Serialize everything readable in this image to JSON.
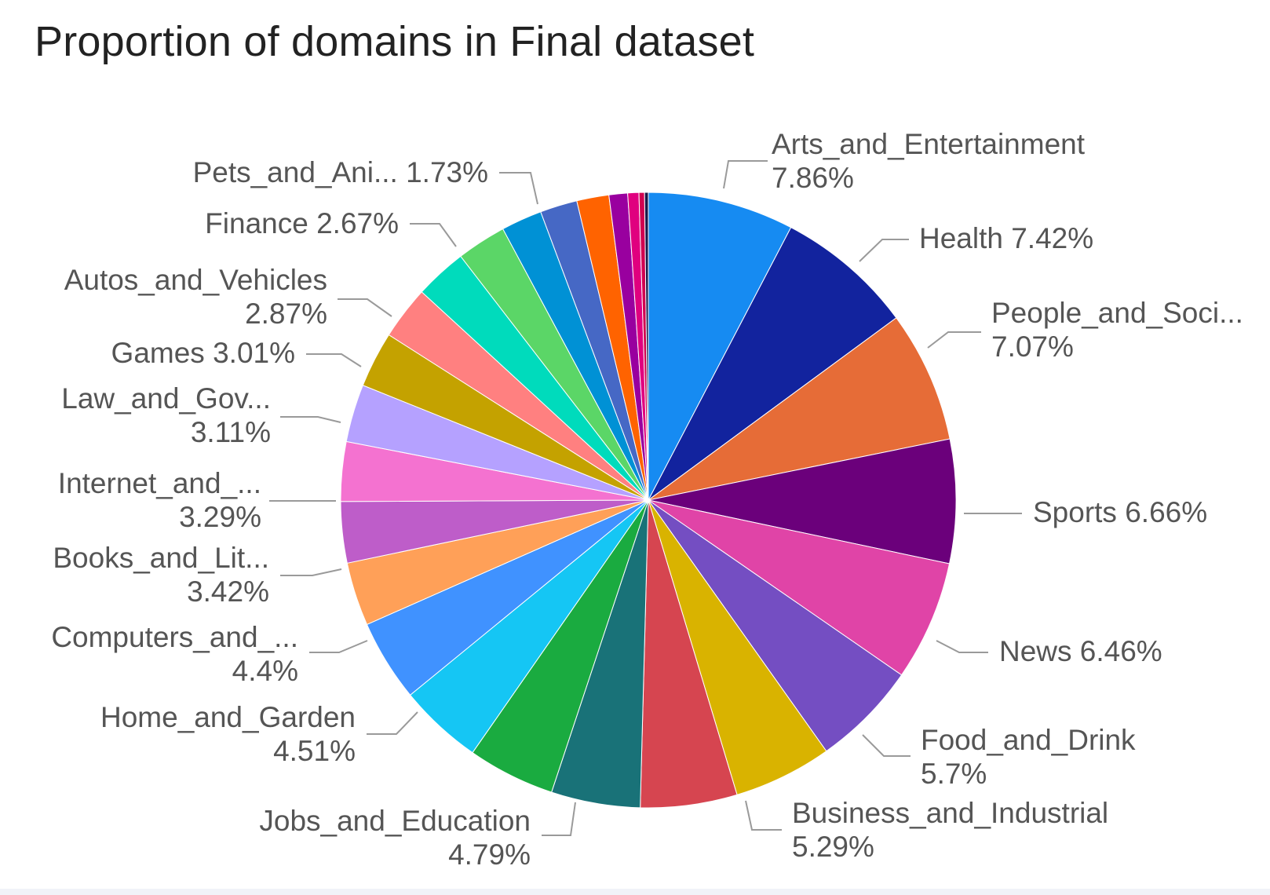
{
  "chart_data": {
    "type": "pie",
    "title": "Proportion of domains in Final dataset",
    "slices": [
      {
        "label": "Arts_and_Entertainment",
        "display": [
          "Arts_and_Entertainment",
          "7.86%"
        ],
        "value": 7.86,
        "color": "#168bf2"
      },
      {
        "label": "Health",
        "display": [
          "Health 7.42%"
        ],
        "value": 7.42,
        "color": "#12239e"
      },
      {
        "label": "People_and_Soci...",
        "display": [
          "People_and_Soci...",
          "7.07%"
        ],
        "value": 7.07,
        "color": "#e66c37"
      },
      {
        "label": "Sports",
        "display": [
          "Sports 6.66%"
        ],
        "value": 6.66,
        "color": "#6b007b"
      },
      {
        "label": "News",
        "display": [
          "News 6.46%"
        ],
        "value": 6.46,
        "color": "#e044a7"
      },
      {
        "label": "Food_and_Drink",
        "display": [
          "Food_and_Drink",
          "5.7%"
        ],
        "value": 5.7,
        "color": "#744ec2"
      },
      {
        "label": "Business_and_Industrial",
        "display": [
          "Business_and_Industrial",
          "5.29%"
        ],
        "value": 5.29,
        "color": "#d9b300"
      },
      {
        "label": "(unlabeled)",
        "display": [],
        "value": 5.2,
        "color": "#d64550"
      },
      {
        "label": "Jobs_and_Education",
        "display": [
          "Jobs_and_Education",
          "4.79%"
        ],
        "value": 4.79,
        "color": "#197278"
      },
      {
        "label": "(unlabeled)",
        "display": [],
        "value": 4.7,
        "color": "#1aab40"
      },
      {
        "label": "Home_and_Garden",
        "display": [
          "Home_and_Garden",
          "4.51%"
        ],
        "value": 4.51,
        "color": "#15c6f4"
      },
      {
        "label": "Computers_and_...",
        "display": [
          "Computers_and_...",
          "4.4%"
        ],
        "value": 4.4,
        "color": "#4092ff"
      },
      {
        "label": "Books_and_Lit...",
        "display": [
          "Books_and_Lit...",
          "3.42%"
        ],
        "value": 3.42,
        "color": "#ffa058"
      },
      {
        "label": "Internet_and_...",
        "display": [
          "Internet_and_...",
          "3.29%"
        ],
        "value": 3.29,
        "color": "#be5dc9"
      },
      {
        "label": "(unlabeled)",
        "display": [],
        "value": 3.2,
        "color": "#f472d0"
      },
      {
        "label": "Law_and_Gov...",
        "display": [
          "Law_and_Gov...",
          "3.11%"
        ],
        "value": 3.11,
        "color": "#b5a1ff"
      },
      {
        "label": "Games",
        "display": [
          "Games 3.01%"
        ],
        "value": 3.01,
        "color": "#c4a200"
      },
      {
        "label": "Autos_and_Vehicles",
        "display": [
          "Autos_and_Vehicles",
          "2.87%"
        ],
        "value": 2.87,
        "color": "#ff8080"
      },
      {
        "label": "(unlabeled)",
        "display": [],
        "value": 2.8,
        "color": "#00dbbc"
      },
      {
        "label": "Finance",
        "display": [
          "Finance 2.67%"
        ],
        "value": 2.67,
        "color": "#5bd667"
      },
      {
        "label": "(unlabeled)",
        "display": [],
        "value": 2.2,
        "color": "#0091d5"
      },
      {
        "label": "(unlabeled)",
        "display": [],
        "value": 2.0,
        "color": "#4668c5"
      },
      {
        "label": "Pets_and_Ani...",
        "display": [
          "Pets_and_Ani... 1.73%"
        ],
        "value": 1.73,
        "color": "#ff6300"
      },
      {
        "label": "(unlabeled)",
        "display": [],
        "value": 1.0,
        "color": "#99009f"
      },
      {
        "label": "(unlabeled)",
        "display": [],
        "value": 0.6,
        "color": "#e0007f"
      },
      {
        "label": "(unlabeled)",
        "display": [],
        "value": 0.3,
        "color": "#d00050"
      },
      {
        "label": "(unlabeled)",
        "display": [],
        "value": 0.2,
        "color": "#1a1a4a"
      }
    ],
    "legend": "none",
    "label_style": "outside with leader lines"
  }
}
